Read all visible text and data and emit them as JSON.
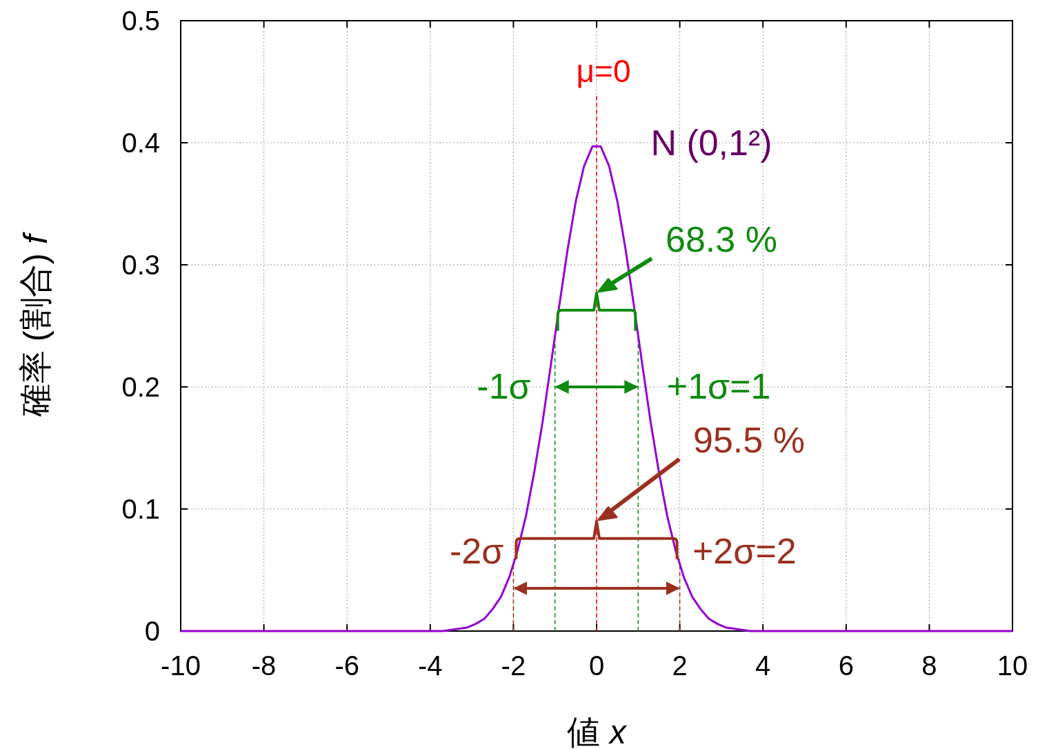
{
  "chart_data": {
    "type": "line",
    "xlabel": "値 x",
    "ylabel": "確率 (割合) f",
    "x": [
      -10,
      -4.1,
      -3.9,
      -3.7,
      -3.5,
      -3.3,
      -3.1,
      -2.9,
      -2.7,
      -2.5,
      -2.3,
      -2.1,
      -1.9,
      -1.7,
      -1.5,
      -1.3,
      -1.1,
      -0.9,
      -0.7,
      -0.5,
      -0.3,
      -0.1,
      0.1,
      0.3,
      0.5,
      0.7,
      0.9,
      1.1,
      1.3,
      1.5,
      1.7,
      1.9,
      2.1,
      2.3,
      2.5,
      2.7,
      2.9,
      3.1,
      3.3,
      3.5,
      3.7,
      3.9,
      4.1,
      10
    ],
    "series": [
      {
        "name": "N (0,1²)",
        "color": "#9400d3",
        "values": [
          0,
          0,
          0,
          0,
          0.001,
          0.002,
          0.003,
          0.006,
          0.01,
          0.018,
          0.028,
          0.044,
          0.066,
          0.094,
          0.13,
          0.171,
          0.218,
          0.266,
          0.312,
          0.352,
          0.381,
          0.397,
          0.397,
          0.381,
          0.352,
          0.312,
          0.266,
          0.218,
          0.171,
          0.13,
          0.094,
          0.066,
          0.044,
          0.028,
          0.018,
          0.01,
          0.006,
          0.003,
          0.002,
          0.001,
          0,
          0,
          0,
          0
        ]
      }
    ],
    "xlim": [
      -10,
      10
    ],
    "xticks": [
      -10,
      -8,
      -6,
      -4,
      -2,
      0,
      2,
      4,
      6,
      8,
      10
    ],
    "ylim": [
      0,
      0.5
    ],
    "yticks": [
      0,
      0.1,
      0.2,
      0.3,
      0.4,
      0.5
    ],
    "grid": true,
    "marker": "none",
    "line_style": "solid",
    "ref_lines": [
      {
        "axis": "x",
        "value": 0,
        "label": "μ=0",
        "color": "#ff0000",
        "line_style": "dashed"
      },
      {
        "axis": "x",
        "value": -1,
        "label": "-1σ",
        "color": "#108a10",
        "line_style": "dashed"
      },
      {
        "axis": "x",
        "value": 1,
        "label": "+1σ=1",
        "color": "#108a10",
        "line_style": "dashed"
      },
      {
        "axis": "x",
        "value": -2,
        "label": "-2σ",
        "color": "#9a3020",
        "line_style": "dashed"
      },
      {
        "axis": "x",
        "value": 2,
        "label": "+2σ=2",
        "color": "#9a3020",
        "line_style": "dashed"
      }
    ],
    "annotations": [
      "68.3 %",
      "95.5 %"
    ]
  }
}
